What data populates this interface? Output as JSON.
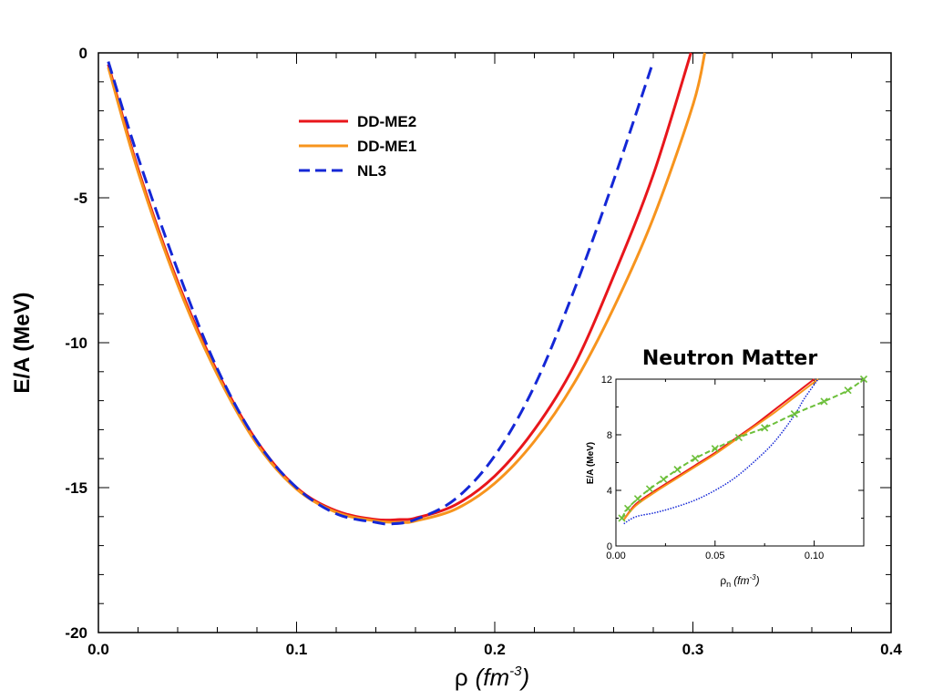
{
  "chart_data": [
    {
      "type": "line",
      "xlabel": "ρ (fm⁻³)",
      "xlabel_parts": {
        "symbol": "ρ",
        "unit": "(fm",
        "exp": "-3",
        "close": ")"
      },
      "ylabel": "E/A  (MeV)",
      "xlim": [
        0.0,
        0.4
      ],
      "ylim": [
        -20,
        0
      ],
      "xticks": [
        0.0,
        0.1,
        0.2,
        0.3,
        0.4
      ],
      "xtick_labels": [
        "0.0",
        "0.1",
        "0.2",
        "0.3",
        "0.4"
      ],
      "yticks": [
        0,
        -5,
        -10,
        -15,
        -20
      ],
      "ytick_labels": [
        "0",
        "-5",
        "-10",
        "-15",
        "-20"
      ],
      "legend": "top-left",
      "grid": false,
      "series": [
        {
          "name": "DD-ME2",
          "color": "#e8161b",
          "style": "solid",
          "x": [
            0.005,
            0.02,
            0.04,
            0.06,
            0.08,
            0.1,
            0.12,
            0.14,
            0.152,
            0.16,
            0.18,
            0.2,
            0.22,
            0.24,
            0.26,
            0.28,
            0.299
          ],
          "y": [
            -0.4,
            -4.0,
            -7.9,
            -11.0,
            -13.4,
            -15.0,
            -15.8,
            -16.1,
            -16.1,
            -16.05,
            -15.6,
            -14.6,
            -13.0,
            -10.8,
            -7.7,
            -4.2,
            0.0
          ]
        },
        {
          "name": "DD-ME1",
          "color": "#f7941d",
          "style": "solid",
          "x": [
            0.005,
            0.02,
            0.04,
            0.06,
            0.08,
            0.1,
            0.12,
            0.14,
            0.153,
            0.16,
            0.18,
            0.2,
            0.22,
            0.24,
            0.26,
            0.28,
            0.3,
            0.306
          ],
          "y": [
            -0.5,
            -4.1,
            -8.0,
            -11.1,
            -13.5,
            -15.05,
            -15.85,
            -16.15,
            -16.2,
            -16.15,
            -15.75,
            -14.85,
            -13.4,
            -11.4,
            -8.8,
            -5.7,
            -1.8,
            0.0
          ]
        },
        {
          "name": "NL3",
          "color": "#1427d6",
          "style": "dashed",
          "x": [
            0.005,
            0.02,
            0.04,
            0.06,
            0.08,
            0.1,
            0.12,
            0.14,
            0.148,
            0.16,
            0.18,
            0.2,
            0.22,
            0.24,
            0.26,
            0.279
          ],
          "y": [
            -0.3,
            -3.6,
            -7.5,
            -10.9,
            -13.4,
            -15.0,
            -15.9,
            -16.2,
            -16.25,
            -16.1,
            -15.4,
            -13.9,
            -11.5,
            -8.2,
            -4.4,
            -0.5
          ]
        }
      ]
    },
    {
      "type": "line",
      "title": "Neutron Matter",
      "xlabel": "ρn (fm⁻³)",
      "xlabel_parts": {
        "symbol": "ρ",
        "sub": "n",
        "unit": "(fm",
        "exp": "-3",
        "close": ")"
      },
      "ylabel": "E/A (MeV)",
      "xlim": [
        0.0,
        0.125
      ],
      "ylim": [
        0,
        12
      ],
      "xticks": [
        0.0,
        0.05,
        0.1
      ],
      "xtick_labels": [
        "0.00",
        "0.05",
        "0.10"
      ],
      "yticks": [
        0,
        4,
        8,
        12
      ],
      "ytick_labels": [
        "0",
        "4",
        "8",
        "12"
      ],
      "series": [
        {
          "color": "#e8161b",
          "style": "solid",
          "x": [
            0.004,
            0.01,
            0.02,
            0.03,
            0.04,
            0.05,
            0.06,
            0.07,
            0.08,
            0.09,
            0.1
          ],
          "y": [
            1.9,
            3.0,
            4.0,
            4.9,
            5.8,
            6.7,
            7.7,
            8.7,
            9.8,
            10.9,
            12.0
          ]
        },
        {
          "color": "#f7941d",
          "style": "solid",
          "x": [
            0.004,
            0.01,
            0.02,
            0.03,
            0.04,
            0.05,
            0.06,
            0.07,
            0.08,
            0.09,
            0.102
          ],
          "y": [
            1.9,
            2.9,
            3.9,
            4.8,
            5.7,
            6.6,
            7.6,
            8.6,
            9.6,
            10.7,
            12.0
          ]
        },
        {
          "color": "#1427d6",
          "style": "dotted",
          "x": [
            0.004,
            0.01,
            0.02,
            0.03,
            0.04,
            0.05,
            0.06,
            0.07,
            0.08,
            0.09,
            0.095,
            0.102
          ],
          "y": [
            1.6,
            2.1,
            2.4,
            2.8,
            3.3,
            4.0,
            4.9,
            6.1,
            7.5,
            9.4,
            10.6,
            12.0
          ]
        },
        {
          "color": "#6cbf3a",
          "style": "dashed-marker",
          "x": [
            0.003,
            0.006,
            0.011,
            0.017,
            0.024,
            0.031,
            0.04,
            0.05,
            0.062,
            0.075,
            0.09,
            0.105,
            0.117,
            0.125
          ],
          "y": [
            2.0,
            2.7,
            3.4,
            4.1,
            4.8,
            5.5,
            6.3,
            7.0,
            7.8,
            8.5,
            9.5,
            10.4,
            11.2,
            12.0
          ]
        }
      ]
    }
  ]
}
